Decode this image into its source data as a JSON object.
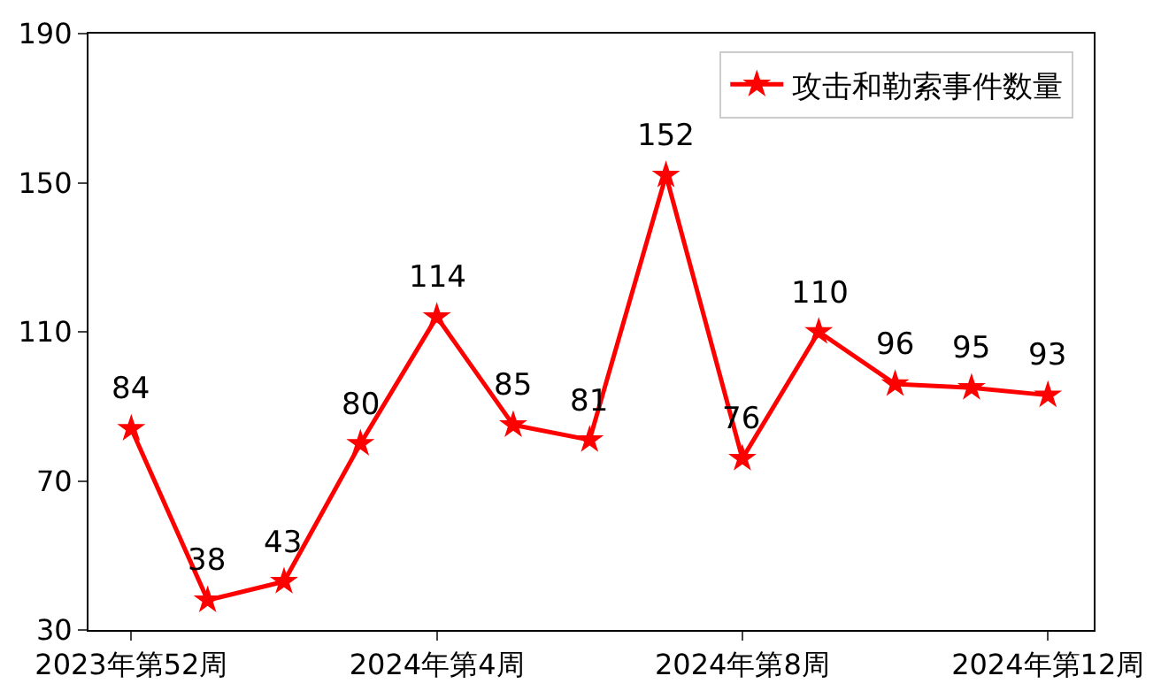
{
  "chart_data": {
    "type": "line",
    "categories": [
      "2023年第52周",
      null,
      null,
      null,
      "2024年第4周",
      null,
      null,
      null,
      "2024年第8周",
      null,
      null,
      null,
      "2024年第12周"
    ],
    "series": [
      {
        "name": "攻击和勒索事件数量",
        "color": "#ff0000",
        "values": [
          84,
          38,
          43,
          80,
          114,
          85,
          81,
          152,
          76,
          110,
          96,
          95,
          93
        ]
      }
    ],
    "ylim": [
      30,
      190
    ],
    "yticks": [
      30,
      70,
      110,
      150,
      190
    ],
    "data_labels": true,
    "legend": "top right",
    "marker": "star",
    "line_style": "solid"
  }
}
